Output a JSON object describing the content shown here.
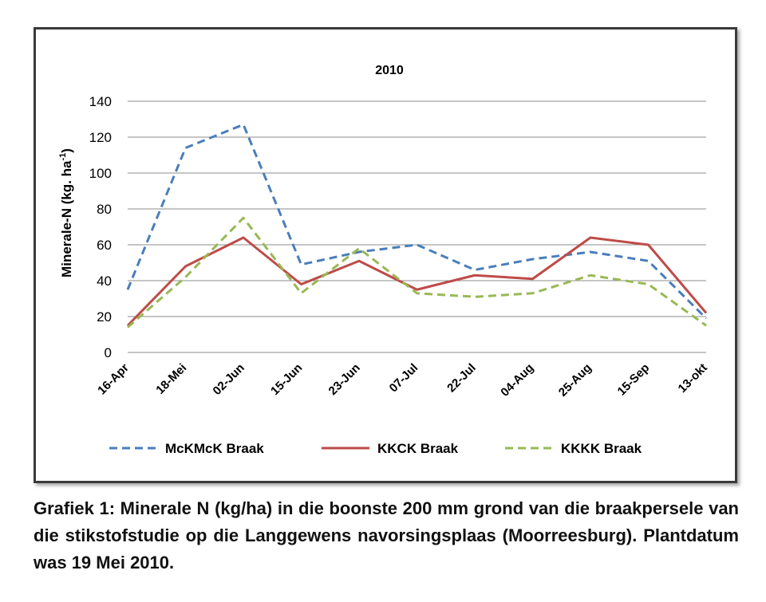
{
  "caption": "Grafiek 1: Minerale N (kg/ha) in die boonste 200 mm grond van die braakpersele van die stikstofstudie op die Langgewens navorsingsplaas (Moorreesburg). Plantdatum was 19 Mei 2010.",
  "chart_data": {
    "type": "line",
    "title": "2010",
    "xlabel": "",
    "ylabel": "Minerale-N (kg. ha",
    "ylabel_sup": "-1",
    "ylabel_close": ")",
    "categories": [
      "16-Apr",
      "18-Mei",
      "02-Jun",
      "15-Jun",
      "23-Jun",
      "07-Jul",
      "22-Jul",
      "04-Aug",
      "25-Aug",
      "15-Sep",
      "13-okt"
    ],
    "ylim": [
      0,
      140
    ],
    "yticks": [
      0,
      20,
      40,
      60,
      80,
      100,
      120,
      140
    ],
    "grid": true,
    "legend_position": "bottom",
    "series": [
      {
        "name": "McKMcK Braak",
        "color": "#4a7ebb",
        "dash": "dashed",
        "values": [
          35,
          114,
          127,
          49,
          56,
          60,
          46,
          52,
          56,
          51,
          19
        ]
      },
      {
        "name": "KKCK Braak",
        "color": "#be4b48",
        "dash": "solid",
        "values": [
          15,
          48,
          64,
          38,
          51,
          35,
          43,
          41,
          64,
          60,
          22
        ]
      },
      {
        "name": "KKKK Braak",
        "color": "#98b954",
        "dash": "dashed",
        "values": [
          14,
          42,
          75,
          33,
          58,
          33,
          31,
          33,
          43,
          38,
          15
        ]
      }
    ]
  }
}
